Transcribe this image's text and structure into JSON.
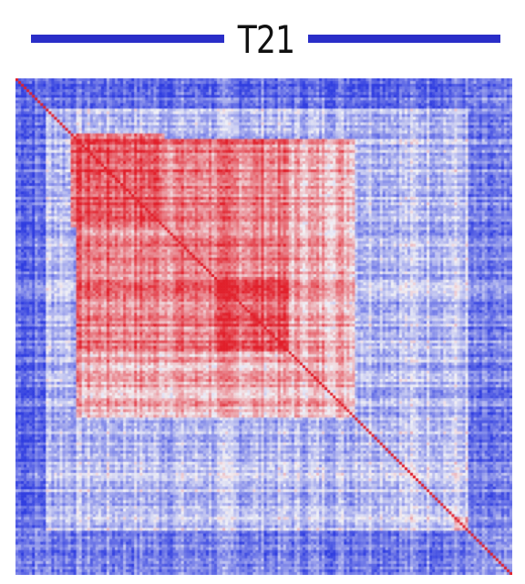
{
  "title": "T21",
  "colors": {
    "title_rule": "#2a2ec8",
    "low": "#2f3de0",
    "mid": "#f2f2f6",
    "high": "#e11f2a"
  },
  "chart_data": {
    "type": "heatmap",
    "title": "T21",
    "xlabel": "",
    "ylabel": "",
    "colormap": "blue-white-red",
    "diagonal": "high",
    "grid": false,
    "legend": "none",
    "block_structure": [
      {
        "span": [
          0.0,
          0.04
        ],
        "level": 0.9
      },
      {
        "span": [
          0.11,
          0.3
        ],
        "level": 0.75
      },
      {
        "span": [
          0.12,
          0.55
        ],
        "level": 0.55
      },
      {
        "span": [
          0.4,
          0.55
        ],
        "level": 0.75
      },
      {
        "span": [
          0.12,
          0.68
        ],
        "level": 0.35
      },
      {
        "span": [
          0.68,
          1.0
        ],
        "level": -0.15
      },
      {
        "span": [
          0.88,
          0.97
        ],
        "level": 0.25
      }
    ],
    "low_bands": [
      [
        0.0,
        0.06
      ],
      [
        0.91,
        1.0
      ]
    ]
  }
}
